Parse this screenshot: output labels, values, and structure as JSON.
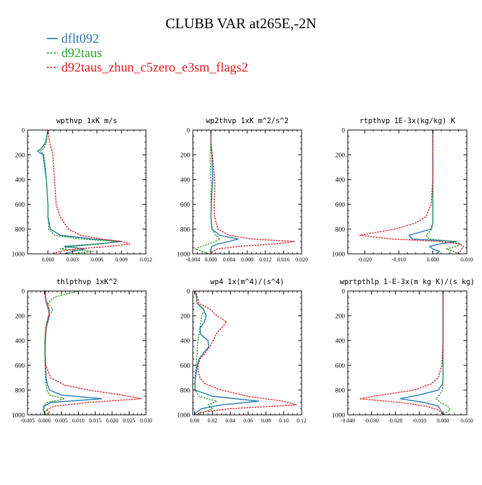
{
  "figure": {
    "title": "CLUBB VAR at265E,-2N"
  },
  "colors": {
    "dflt092": "#1f77b4",
    "d92taus": "#2ca02c",
    "d92taus_zhun_c5zero_e3sm_flags2": "#e31a1c",
    "axis": "#000000"
  },
  "legend": [
    {
      "name": "dflt092",
      "color": "#1f77b4",
      "dash": false
    },
    {
      "name": "d92taus",
      "color": "#2ca02c",
      "dash": true
    },
    {
      "name": "d92taus_zhun_c5zero_e3sm_flags2",
      "color": "#e31a1c",
      "dash": true
    }
  ],
  "chart_data": [
    {
      "type": "line",
      "title": "wpthvp  1xK m/s",
      "xlim": [
        -0.0025,
        0.012
      ],
      "xticks": [
        0.0,
        0.003,
        0.006,
        0.009,
        0.012
      ],
      "xtick_labels": [
        "0.000",
        "0.003",
        "0.006",
        "0.009",
        "0.012"
      ],
      "ylim": [
        1000,
        0
      ],
      "yticks": [
        0,
        200,
        400,
        600,
        800,
        1000
      ],
      "y": [
        0,
        100,
        150,
        170,
        200,
        300,
        400,
        500,
        600,
        700,
        800,
        850,
        880,
        900,
        920,
        940,
        960,
        980,
        1000
      ],
      "series": [
        {
          "name": "dflt092",
          "values": [
            0.0,
            -0.0003,
            -0.0008,
            -0.0013,
            -0.0006,
            -0.0004,
            -0.0002,
            -0.0001,
            0.0,
            0.0,
            0.0003,
            0.0015,
            0.0055,
            0.009,
            0.006,
            0.002,
            0.0045,
            0.003,
            0.002
          ]
        },
        {
          "name": "d92taus",
          "values": [
            0.0,
            -0.0002,
            -0.0005,
            -0.0009,
            -0.0005,
            -0.0003,
            -0.0002,
            -0.0001,
            0.0,
            0.0,
            0.0001,
            0.0008,
            0.004,
            0.0085,
            0.0065,
            0.003,
            0.0015,
            0.0055,
            0.003
          ]
        },
        {
          "name": "d92taus_zhun_c5zero_e3sm_flags2",
          "values": [
            0.0,
            0.0002,
            0.0004,
            0.0005,
            0.0006,
            0.0007,
            0.0008,
            0.0009,
            0.001,
            0.0015,
            0.0025,
            0.004,
            0.0065,
            0.009,
            0.01,
            0.0075,
            0.0035,
            0.0015,
            0.0005
          ]
        }
      ]
    },
    {
      "type": "line",
      "title": "wp2thvp  1xK m^2/s^2",
      "xlim": [
        -0.004,
        0.02
      ],
      "xticks": [
        -0.004,
        0.0,
        0.004,
        0.008,
        0.012,
        0.016,
        0.02
      ],
      "xtick_labels": [
        "-0.004",
        "0.000",
        "0.004",
        "0.008",
        "0.012",
        "0.016",
        "0.020"
      ],
      "ylim": [
        1000,
        0
      ],
      "yticks": [
        0,
        200,
        400,
        600,
        800,
        1000
      ],
      "y": [
        0,
        100,
        200,
        300,
        400,
        450,
        500,
        600,
        700,
        800,
        850,
        880,
        900,
        920,
        940,
        960,
        980,
        1000
      ],
      "series": [
        {
          "name": "dflt092",
          "values": [
            0.0,
            0.0,
            0.0002,
            0.0003,
            0.0004,
            0.0003,
            0.0002,
            0.0001,
            0.0,
            0.0002,
            0.002,
            0.006,
            0.004,
            0.0015,
            0.0002,
            0.0,
            0.0,
            0.0
          ]
        },
        {
          "name": "d92taus",
          "values": [
            0.0,
            0.0,
            -0.0002,
            -0.0001,
            0.0,
            0.0002,
            0.0,
            0.0,
            0.0,
            0.0003,
            0.001,
            0.002,
            0.001,
            -0.0005,
            -0.002,
            -0.0035,
            -0.002,
            -0.0005
          ]
        },
        {
          "name": "d92taus_zhun_c5zero_e3sm_flags2",
          "values": [
            0.0,
            0.0,
            0.0003,
            0.0006,
            0.0008,
            0.0009,
            0.0008,
            0.0007,
            0.0008,
            0.0015,
            0.004,
            0.009,
            0.0185,
            0.014,
            0.006,
            0.0015,
            0.0005,
            0.0
          ]
        }
      ]
    },
    {
      "type": "line",
      "title": "rtpthvp  1E-3x(kg/kg) K",
      "xlim": [
        -0.025,
        0.01
      ],
      "xticks": [
        -0.02,
        -0.01,
        0.0,
        0.01
      ],
      "xtick_labels": [
        "-0.020",
        "-0.010",
        "0.000",
        "0.010"
      ],
      "ylim": [
        1000,
        0
      ],
      "yticks": [
        0,
        200,
        400,
        600,
        800,
        1000
      ],
      "y": [
        0,
        200,
        400,
        600,
        700,
        750,
        800,
        850,
        880,
        900,
        920,
        940,
        960,
        980,
        1000
      ],
      "series": [
        {
          "name": "dflt092",
          "values": [
            0.0,
            0.0,
            0.0,
            0.0,
            0.0,
            0.0,
            -0.0005,
            -0.007,
            -0.006,
            0.007,
            0.002,
            -0.001,
            0.0,
            0.002,
            0.001
          ]
        },
        {
          "name": "d92taus",
          "values": [
            0.0,
            0.0,
            0.0,
            0.0,
            0.0,
            0.0,
            -0.0003,
            -0.002,
            -0.001,
            0.006,
            0.008,
            0.007,
            0.004,
            0.006,
            0.008
          ]
        },
        {
          "name": "d92taus_zhun_c5zero_e3sm_flags2",
          "values": [
            0.0,
            0.0,
            0.0,
            -0.0005,
            -0.002,
            -0.005,
            -0.011,
            -0.0215,
            -0.012,
            0.002,
            0.008,
            0.009,
            0.0085,
            0.008,
            0.007
          ]
        }
      ]
    },
    {
      "type": "line",
      "title": "thlpthvp  1xK^2",
      "xlim": [
        -0.005,
        0.03
      ],
      "xticks": [
        -0.005,
        0.0,
        0.005,
        0.01,
        0.015,
        0.02,
        0.025,
        0.03
      ],
      "xtick_labels": [
        "-0.005",
        "0.000",
        "0.005",
        "0.010",
        "0.015",
        "0.020",
        "0.025",
        "0.030"
      ],
      "ylim": [
        1000,
        0
      ],
      "yticks": [
        0,
        200,
        400,
        600,
        800,
        1000
      ],
      "y": [
        0,
        50,
        100,
        150,
        200,
        300,
        400,
        500,
        600,
        700,
        760,
        800,
        840,
        870,
        900,
        930,
        960,
        980,
        1000
      ],
      "series": [
        {
          "name": "dflt092",
          "values": [
            0.0004,
            0.0002,
            0.0006,
            0.0012,
            0.0015,
            0.0005,
            0.0002,
            0.0002,
            0.0003,
            0.0005,
            0.0009,
            0.0015,
            0.005,
            0.017,
            0.002,
            0.0,
            -0.0004,
            0.0,
            0.0
          ]
        },
        {
          "name": "d92taus",
          "values": [
            0.01,
            0.003,
            0.001,
            0.0025,
            0.0012,
            0.0003,
            0.0001,
            0.0001,
            0.0002,
            0.0003,
            0.0005,
            0.0007,
            0.0015,
            0.006,
            0.0008,
            -0.0004,
            0.0,
            0.0004,
            0.0003
          ]
        },
        {
          "name": "d92taus_zhun_c5zero_e3sm_flags2",
          "values": [
            0.0002,
            0.0003,
            0.0008,
            0.0015,
            0.0012,
            0.0005,
            0.0003,
            0.0002,
            0.0004,
            0.0018,
            0.006,
            0.013,
            0.023,
            0.0285,
            0.013,
            0.003,
            0.0005,
            0.0015,
            0.0005
          ]
        }
      ]
    },
    {
      "type": "line",
      "title": "wp4  1x(m^4)/(s^4)",
      "xlim": [
        -0.002,
        0.12
      ],
      "xticks": [
        0.0,
        0.02,
        0.04,
        0.06,
        0.08,
        0.1,
        0.12
      ],
      "xtick_labels": [
        "0.00",
        "0.02",
        "0.04",
        "0.06",
        "0.08",
        "0.10",
        "0.12"
      ],
      "ylim": [
        1000,
        0
      ],
      "yticks": [
        0,
        200,
        400,
        600,
        800,
        1000
      ],
      "y": [
        0,
        100,
        150,
        200,
        250,
        300,
        350,
        400,
        450,
        500,
        550,
        600,
        650,
        700,
        750,
        800,
        850,
        890,
        920,
        950,
        980,
        1000
      ],
      "series": [
        {
          "name": "dflt092",
          "values": [
            0.001,
            0.003,
            0.01,
            0.013,
            0.011,
            0.006,
            0.007,
            0.015,
            0.016,
            0.01,
            0.005,
            0.003,
            0.002,
            0.001,
            0.0005,
            0.0005,
            0.02,
            0.072,
            0.03,
            0.008,
            0.002,
            0.0
          ]
        },
        {
          "name": "d92taus",
          "values": [
            0.001,
            0.003,
            0.011,
            0.008,
            0.007,
            0.006,
            0.005,
            0.004,
            0.003,
            0.003,
            0.002,
            0.002,
            0.001,
            0.0005,
            0.0005,
            0.0005,
            0.005,
            0.025,
            0.015,
            0.02,
            0.01,
            0.003
          ]
        },
        {
          "name": "d92taus_zhun_c5zero_e3sm_flags2",
          "values": [
            0.001,
            0.005,
            0.018,
            0.025,
            0.036,
            0.03,
            0.024,
            0.021,
            0.017,
            0.012,
            0.006,
            0.004,
            0.004,
            0.006,
            0.012,
            0.03,
            0.06,
            0.1,
            0.114,
            0.04,
            0.006,
            0.002
          ]
        }
      ]
    },
    {
      "type": "line",
      "title": "wprtpthlp  1-E-3x(m kg K)/(s kg)",
      "xlim": [
        -0.04,
        0.01
      ],
      "xticks": [
        -0.04,
        -0.03,
        -0.02,
        -0.01,
        0.0,
        0.01
      ],
      "xtick_labels": [
        "-0.040",
        "-0.030",
        "-0.020",
        "-0.010",
        "0.000",
        "0.010"
      ],
      "ylim": [
        1000,
        0
      ],
      "yticks": [
        0,
        200,
        400,
        600,
        800,
        1000
      ],
      "y": [
        0,
        200,
        400,
        600,
        700,
        750,
        800,
        840,
        870,
        900,
        930,
        960,
        1000
      ],
      "series": [
        {
          "name": "dflt092",
          "values": [
            0.0,
            0.0,
            0.0,
            0.0,
            0.0,
            -0.0002,
            -0.002,
            -0.01,
            -0.018,
            -0.008,
            -0.002,
            -0.001,
            0.0
          ]
        },
        {
          "name": "d92taus",
          "values": [
            0.0,
            0.0,
            0.0,
            0.0,
            0.0,
            0.0,
            -0.0002,
            -0.0015,
            -0.003,
            -0.001,
            0.002,
            0.003,
            0.0
          ]
        },
        {
          "name": "d92taus_zhun_c5zero_e3sm_flags2",
          "values": [
            0.0,
            0.0,
            0.0,
            -0.0005,
            -0.002,
            -0.005,
            -0.012,
            -0.026,
            -0.035,
            -0.018,
            -0.007,
            -0.002,
            0.0
          ]
        }
      ]
    }
  ]
}
